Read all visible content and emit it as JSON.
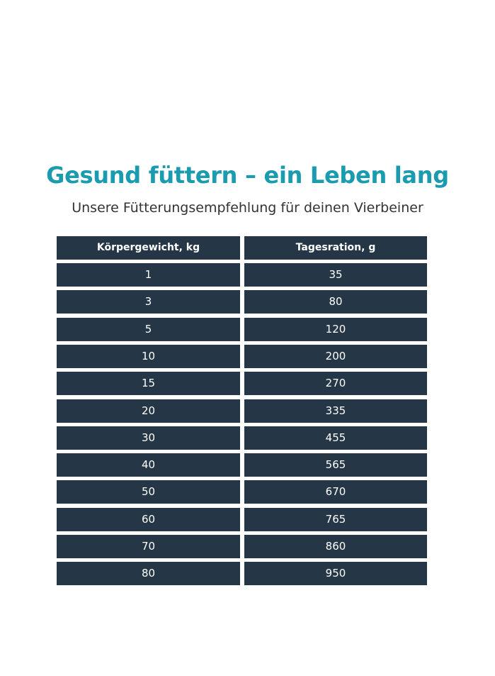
{
  "header": {
    "title": "Gesund füttern – ein Leben lang",
    "subtitle": "Unsere Fütterungsempfehlung für deinen Vierbeiner"
  },
  "table": {
    "columns": [
      "Körpergewicht, kg",
      "Tagesration, g"
    ],
    "rows": [
      [
        1,
        35
      ],
      [
        3,
        80
      ],
      [
        5,
        120
      ],
      [
        10,
        200
      ],
      [
        15,
        270
      ],
      [
        20,
        335
      ],
      [
        30,
        455
      ],
      [
        40,
        565
      ],
      [
        50,
        670
      ],
      [
        60,
        765
      ],
      [
        70,
        860
      ],
      [
        80,
        950
      ]
    ]
  }
}
